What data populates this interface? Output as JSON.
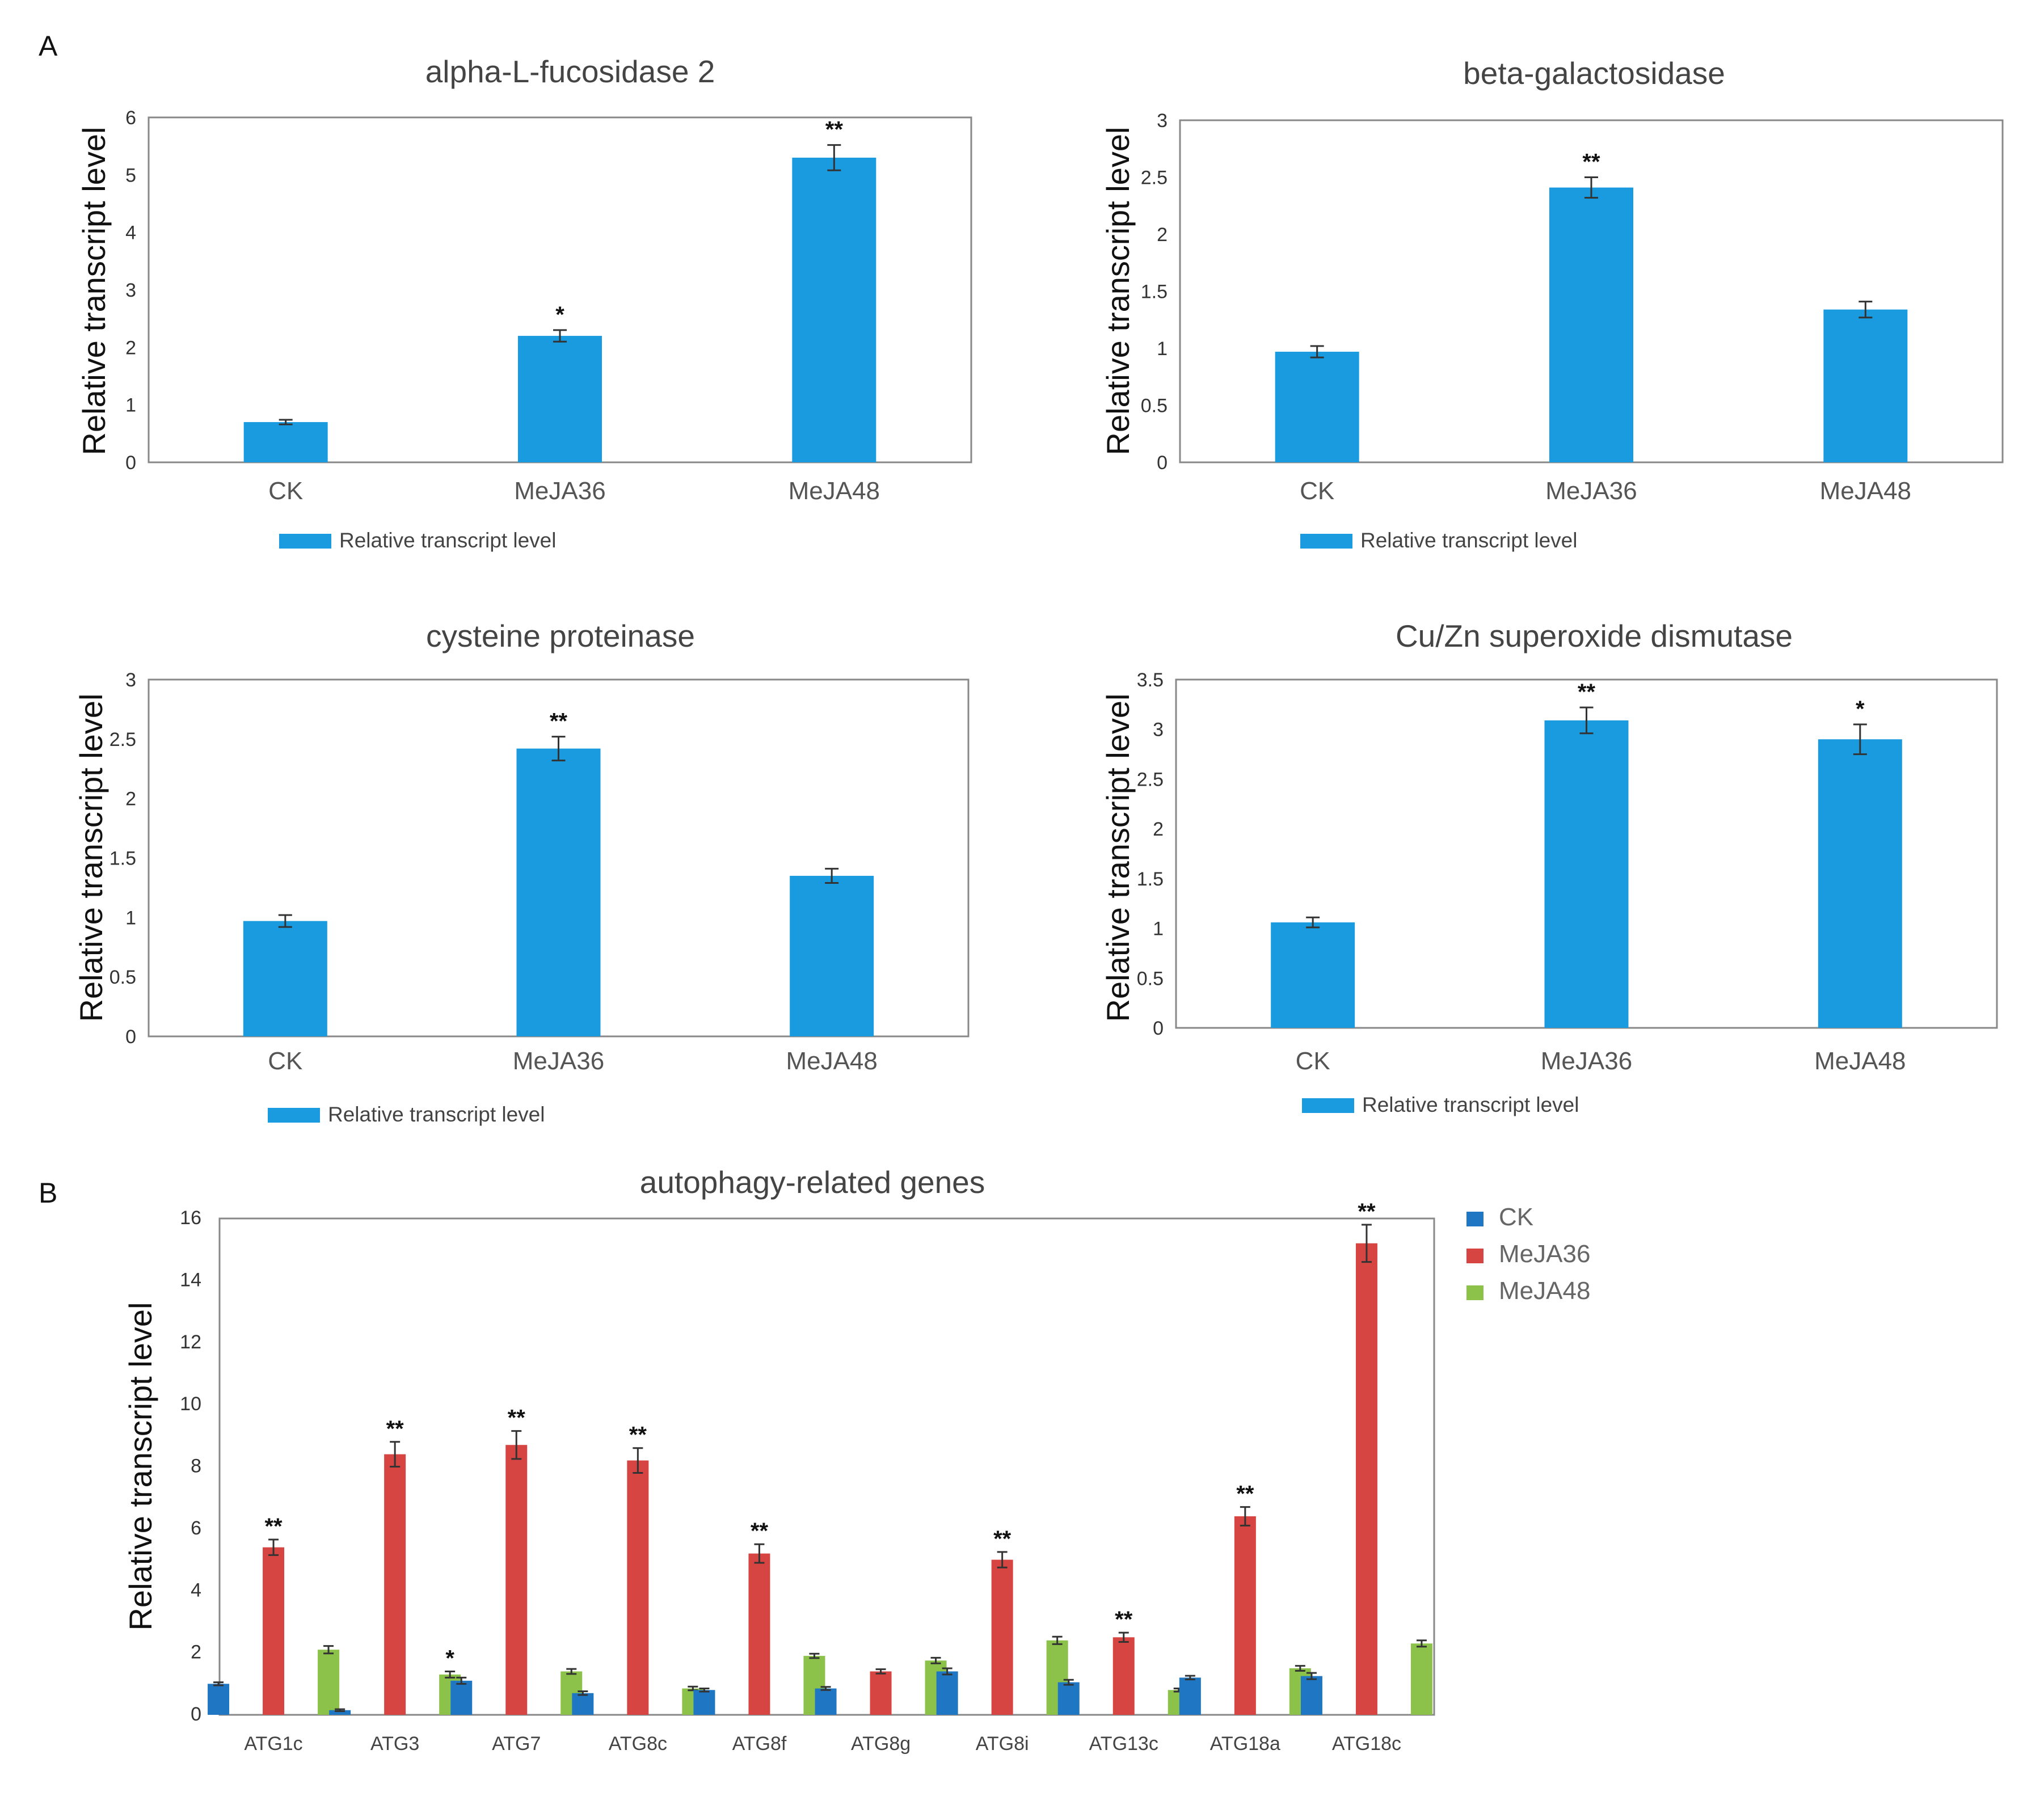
{
  "panels": {
    "a_label": "A",
    "b_label": "B"
  },
  "colors": {
    "bar_blue": "#1a9be0",
    "ck": "#1f77c4",
    "meja36": "#d64541",
    "meja48": "#8cc24a",
    "frame": "#888888"
  },
  "chart_data": [
    {
      "type": "bar",
      "title": "alpha-L-fucosidase 2",
      "ylabel": "Relative transcript level",
      "ylim": [
        0,
        6
      ],
      "yticks": [
        "0",
        "1",
        "2",
        "3",
        "4",
        "5",
        "6"
      ],
      "categories": [
        "CK",
        "MeJA36",
        "MeJA48"
      ],
      "values": [
        0.7,
        2.2,
        5.3
      ],
      "errors": [
        0.04,
        0.1,
        0.22
      ],
      "significance": [
        "",
        "*",
        "**"
      ],
      "legend": "Relative transcript level"
    },
    {
      "type": "bar",
      "title": "beta-galactosidase",
      "ylabel": "Relative transcript level",
      "ylim": [
        0,
        3
      ],
      "yticks": [
        "0",
        "0.5",
        "1",
        "1.5",
        "2",
        "2.5",
        "3"
      ],
      "categories": [
        "CK",
        "MeJA36",
        "MeJA48"
      ],
      "values": [
        0.97,
        2.41,
        1.34
      ],
      "errors": [
        0.05,
        0.09,
        0.07
      ],
      "significance": [
        "",
        "**",
        ""
      ],
      "legend": "Relative transcript level"
    },
    {
      "type": "bar",
      "title": "cysteine proteinase",
      "ylabel": "Relative transcript level",
      "ylim": [
        0,
        3
      ],
      "yticks": [
        "0",
        "0.5",
        "1",
        "1.5",
        "2",
        "2.5",
        "3"
      ],
      "categories": [
        "CK",
        "MeJA36",
        "MeJA48"
      ],
      "values": [
        0.97,
        2.42,
        1.35
      ],
      "errors": [
        0.05,
        0.1,
        0.06
      ],
      "significance": [
        "",
        "**",
        ""
      ],
      "legend": "Relative transcript level"
    },
    {
      "type": "bar",
      "title": "Cu/Zn superoxide dismutase",
      "ylabel": "Relative transcript level",
      "ylim": [
        0,
        3.5
      ],
      "yticks": [
        "0",
        "0.5",
        "1",
        "1.5",
        "2",
        "2.5",
        "3",
        "3.5"
      ],
      "categories": [
        "CK",
        "MeJA36",
        "MeJA48"
      ],
      "values": [
        1.06,
        3.09,
        2.9
      ],
      "errors": [
        0.05,
        0.13,
        0.15
      ],
      "significance": [
        "",
        "**",
        "*"
      ],
      "legend": "Relative transcript level"
    },
    {
      "type": "bar",
      "title": "autophagy-related genes",
      "ylabel": "Relative transcript level",
      "ylim": [
        0,
        16
      ],
      "yticks": [
        "0",
        "2",
        "4",
        "6",
        "8",
        "10",
        "12",
        "14",
        "16"
      ],
      "categories": [
        "ATG1c",
        "ATG3",
        "ATG7",
        "ATG8c",
        "ATG8f",
        "ATG8g",
        "ATG8i",
        "ATG13c",
        "ATG18a",
        "ATG18c"
      ],
      "series": [
        {
          "name": "CK",
          "values": [
            1.0,
            0.15,
            1.1,
            0.7,
            0.8,
            0.85,
            1.4,
            1.05,
            1.2,
            1.25
          ],
          "errors": [
            0.05,
            0.03,
            0.1,
            0.06,
            0.05,
            0.05,
            0.1,
            0.08,
            0.06,
            0.1
          ],
          "significance": [
            "",
            "",
            "",
            "",
            "",
            "",
            "",
            "",
            "",
            ""
          ]
        },
        {
          "name": "MeJA36",
          "values": [
            5.4,
            8.4,
            8.7,
            8.2,
            5.2,
            1.4,
            5.0,
            2.5,
            6.4,
            15.2
          ],
          "errors": [
            0.25,
            0.4,
            0.45,
            0.4,
            0.3,
            0.07,
            0.25,
            0.15,
            0.3,
            0.6
          ],
          "significance": [
            "**",
            "**",
            "**",
            "**",
            "**",
            "",
            "**",
            "**",
            "**",
            "**"
          ]
        },
        {
          "name": "MeJA48",
          "values": [
            2.1,
            1.3,
            1.4,
            0.85,
            1.9,
            1.75,
            2.4,
            0.8,
            1.5,
            2.3
          ],
          "errors": [
            0.12,
            0.1,
            0.08,
            0.06,
            0.07,
            0.09,
            0.12,
            0.05,
            0.08,
            0.1
          ],
          "significance": [
            "",
            "*",
            "",
            "",
            "",
            "",
            "",
            "",
            "",
            ""
          ]
        }
      ],
      "legend_position": "right"
    }
  ]
}
